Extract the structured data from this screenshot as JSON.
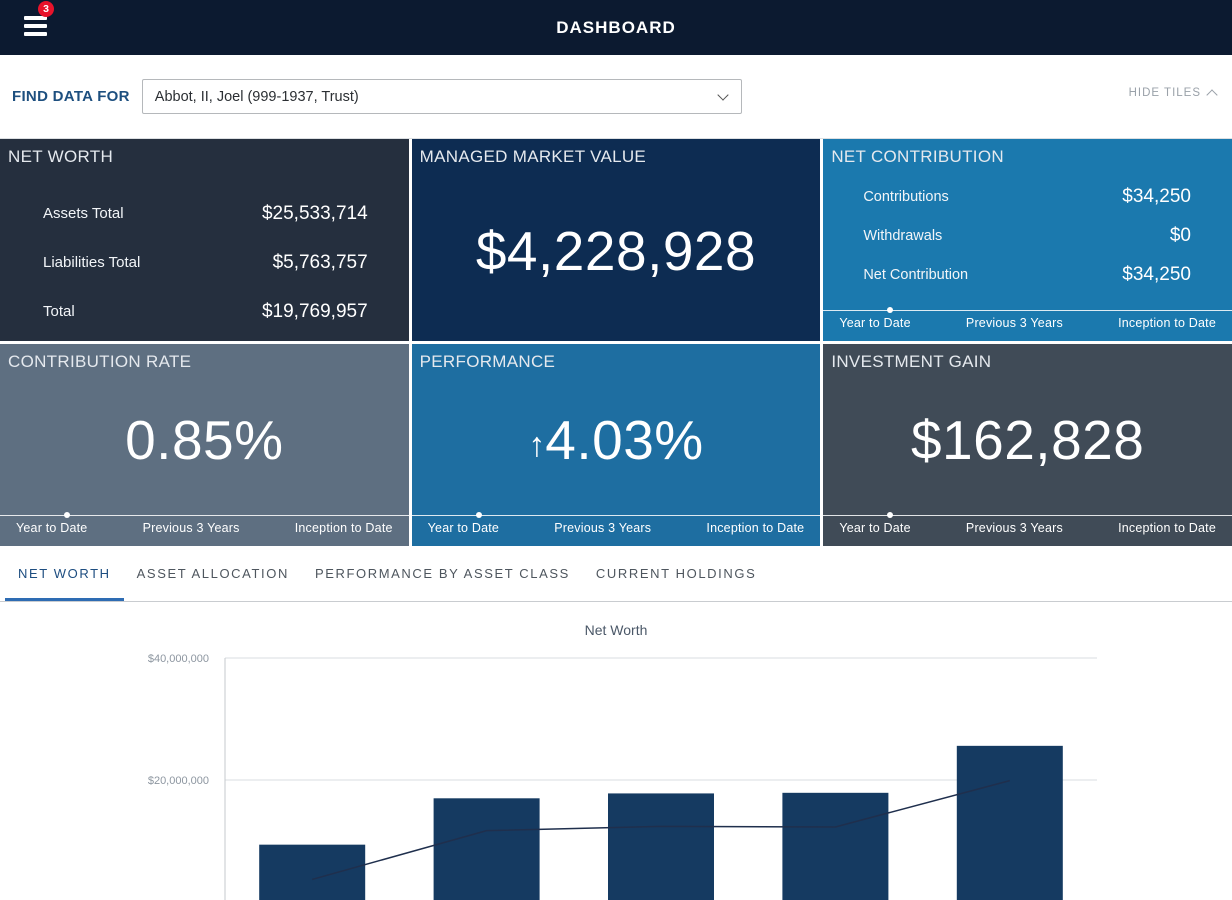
{
  "topbar": {
    "title": "DASHBOARD",
    "badge_count": "3"
  },
  "finder": {
    "label": "FIND DATA FOR",
    "selected_client": "Abbot, II, Joel (999-1937, Trust)",
    "hide_tiles_label": "HIDE TILES"
  },
  "period_tabs": {
    "ytd": "Year to Date",
    "prev3": "Previous 3 Years",
    "inception": "Inception to Date"
  },
  "tiles": {
    "net_worth": {
      "title": "NET WORTH",
      "rows": [
        {
          "label": "Assets Total",
          "value": "$25,533,714"
        },
        {
          "label": "Liabilities Total",
          "value": "$5,763,757"
        },
        {
          "label": "Total",
          "value": "$19,769,957"
        }
      ]
    },
    "managed_market_value": {
      "title": "MANAGED MARKET VALUE",
      "value": "$4,228,928"
    },
    "net_contribution": {
      "title": "NET CONTRIBUTION",
      "rows": [
        {
          "label": "Contributions",
          "value": "$34,250"
        },
        {
          "label": "Withdrawals",
          "value": "$0"
        },
        {
          "label": "Net Contribution",
          "value": "$34,250"
        }
      ]
    },
    "contribution_rate": {
      "title": "CONTRIBUTION RATE",
      "value": "0.85%"
    },
    "performance": {
      "title": "PERFORMANCE",
      "arrow": "↑",
      "value": "4.03%"
    },
    "investment_gain": {
      "title": "INVESTMENT GAIN",
      "value": "$162,828"
    }
  },
  "section_tabs": [
    {
      "label": "NET WORTH",
      "active": true
    },
    {
      "label": "ASSET ALLOCATION",
      "active": false
    },
    {
      "label": "PERFORMANCE BY ASSET CLASS",
      "active": false
    },
    {
      "label": "CURRENT HOLDINGS",
      "active": false
    }
  ],
  "colors": {
    "topbar_bg": "#0c1a30",
    "badge_red": "#e8132b",
    "tile_net_worth_bg": "#252f3e",
    "tile_managed_bg": "#0d2c52",
    "tile_contribution_bg": "#1b79ae",
    "tile_rate_bg": "#5e6f81",
    "tile_performance_bg": "#1e6ea1",
    "tile_gain_bg": "#404b57",
    "active_tab_text": "#1d4d80",
    "active_tab_underline": "#2e6cb3",
    "bar_color": "#153a61",
    "line_color": "#1f2f4d"
  },
  "chart_data": {
    "type": "bar",
    "title": "Net Worth",
    "x": [
      1,
      2,
      3,
      4,
      5
    ],
    "bar_series": {
      "name": "Net Worth",
      "values": [
        9400000,
        17000000,
        17800000,
        17900000,
        25600000
      ]
    },
    "line_series": {
      "values": [
        3700000,
        11700000,
        12400000,
        12300000,
        19900000
      ]
    },
    "y_axis": {
      "min": 0,
      "max": 40000000,
      "ticks": [
        40000000,
        20000000
      ],
      "tick_labels": [
        "$40,000,000",
        "$20,000,000"
      ]
    },
    "grid": true,
    "x_tick_labels": []
  }
}
